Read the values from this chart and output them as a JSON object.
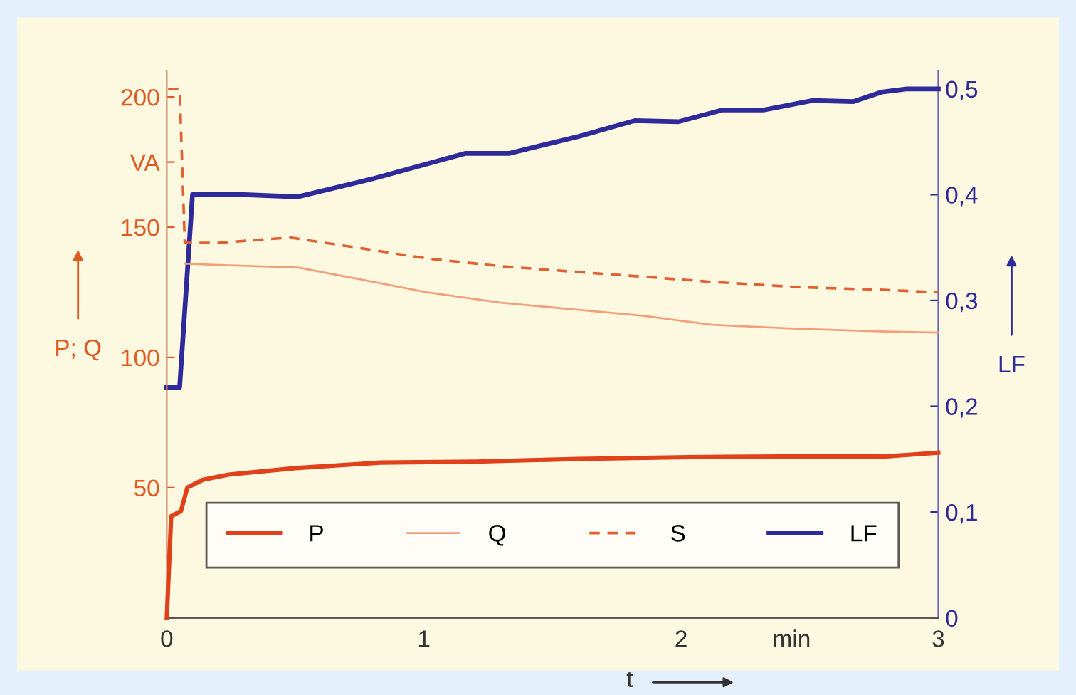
{
  "chart_data": {
    "type": "line",
    "xlabel": "t",
    "ylabel": "P; Q",
    "y2label": "LF",
    "xlim": [
      0,
      3
    ],
    "xticks": [
      0,
      1,
      2,
      {
        "value": 2.43,
        "label": "min"
      },
      3
    ],
    "ylim": [
      0,
      210
    ],
    "yticks": [
      50,
      100,
      150,
      {
        "value": 175,
        "label": "VA"
      },
      200
    ],
    "y2lim": [
      0,
      0.517
    ],
    "y2ticks": [
      {
        "value": 0,
        "label": "0"
      },
      {
        "value": 0.1,
        "label": "0,1"
      },
      {
        "value": 0.2,
        "label": "0,2"
      },
      {
        "value": 0.3,
        "label": "0,3"
      },
      {
        "value": 0.4,
        "label": "0,4"
      },
      {
        "value": 0.5,
        "label": "0,5"
      }
    ],
    "grid": false,
    "legend": "bottom",
    "marker": "none",
    "series": [
      {
        "name": "P",
        "color": "#e0401a",
        "line_style": "solid",
        "x": [
          0,
          0.017,
          0.055,
          0.08,
          0.14,
          0.24,
          0.5,
          0.83,
          1.2,
          1.6,
          2.03,
          2.5,
          2.8,
          3
        ],
        "values": [
          0,
          39,
          41,
          50,
          53,
          55,
          57.5,
          59.6,
          60,
          61,
          61.7,
          62,
          62,
          63.4
        ]
      },
      {
        "name": "Q",
        "color": "#f2a07a",
        "line_style": "solid",
        "x": [
          0.07,
          0.2,
          0.51,
          0.75,
          1.01,
          1.3,
          1.57,
          1.85,
          2.12,
          2.45,
          2.77,
          3
        ],
        "values": [
          136,
          135.5,
          134.5,
          130,
          125,
          121,
          118.5,
          116,
          112.5,
          111,
          110,
          109.5
        ]
      },
      {
        "name": "S",
        "color": "#e06030",
        "line_style": "dashed",
        "x": [
          0.005,
          0.05,
          0.07,
          0.2,
          0.48,
          0.75,
          1.01,
          1.3,
          1.57,
          1.85,
          2.12,
          2.45,
          2.77,
          3
        ],
        "values": [
          203,
          203,
          144,
          144,
          146,
          142,
          138,
          135,
          133,
          131,
          129,
          127,
          126,
          125
        ]
      },
      {
        "name": "LF",
        "color": "#2e2a9a",
        "line_style": "solid",
        "axis": "y2",
        "x": [
          0,
          0.05,
          0.1,
          0.3,
          0.51,
          0.8,
          1.16,
          1.33,
          1.6,
          1.82,
          1.99,
          2.16,
          2.32,
          2.51,
          2.67,
          2.78,
          2.88,
          3
        ],
        "values": [
          0.218,
          0.218,
          0.4,
          0.4,
          0.398,
          0.415,
          0.439,
          0.439,
          0.455,
          0.47,
          0.469,
          0.48,
          0.48,
          0.489,
          0.488,
          0.497,
          0.5,
          0.5
        ]
      }
    ]
  }
}
